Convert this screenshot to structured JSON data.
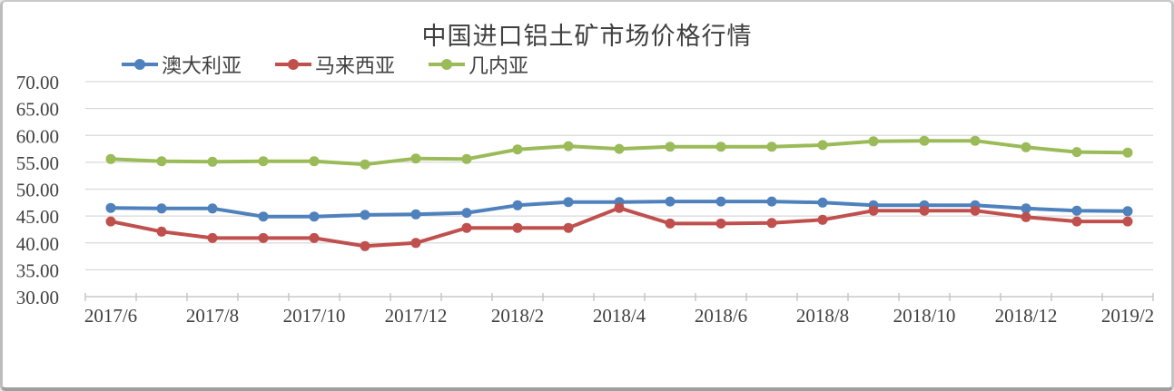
{
  "chart_data": {
    "type": "line",
    "title": "中国进口铝土矿市场价格行情",
    "ylim": [
      30,
      70
    ],
    "y_tick_step": 5,
    "y_tick_labels": [
      "70.00",
      "65.00",
      "60.00",
      "55.00",
      "50.00",
      "45.00",
      "40.00",
      "35.00",
      "30.00"
    ],
    "x_tick_labels": [
      "2017/6",
      "2017/8",
      "2017/10",
      "2017/12",
      "2018/2",
      "2018/4",
      "2018/6",
      "2018/8",
      "2018/10",
      "2018/12",
      "2019/2"
    ],
    "grid": "horizontal",
    "legend_position": "top-left",
    "series": [
      {
        "name": "澳大利亚",
        "color": "#4F81BD",
        "values": [
          46.5,
          46.4,
          46.4,
          44.9,
          44.9,
          45.2,
          45.3,
          45.6,
          47.0,
          47.6,
          47.6,
          47.7,
          47.7,
          47.7,
          47.5,
          47.0,
          47.0,
          47.0,
          46.4,
          46.0,
          45.9
        ]
      },
      {
        "name": "马来西亚",
        "color": "#C0504D",
        "values": [
          44.0,
          42.1,
          40.9,
          40.9,
          40.9,
          39.4,
          40.0,
          42.8,
          42.8,
          42.8,
          46.5,
          43.6,
          43.6,
          43.7,
          44.3,
          46.0,
          46.0,
          46.0,
          44.8,
          44.0,
          44.0
        ]
      },
      {
        "name": "几内亚",
        "color": "#9BBB59",
        "values": [
          55.6,
          55.2,
          55.1,
          55.2,
          55.2,
          54.6,
          55.7,
          55.6,
          57.4,
          58.0,
          57.5,
          57.9,
          57.9,
          57.9,
          58.2,
          58.9,
          59.0,
          59.0,
          57.8,
          56.9,
          56.8
        ]
      }
    ],
    "colors": {
      "grid_line": "#d9d9d9",
      "axis_line": "#bfbfbf",
      "axis_text": "#404040",
      "title_text": "#404040"
    }
  }
}
